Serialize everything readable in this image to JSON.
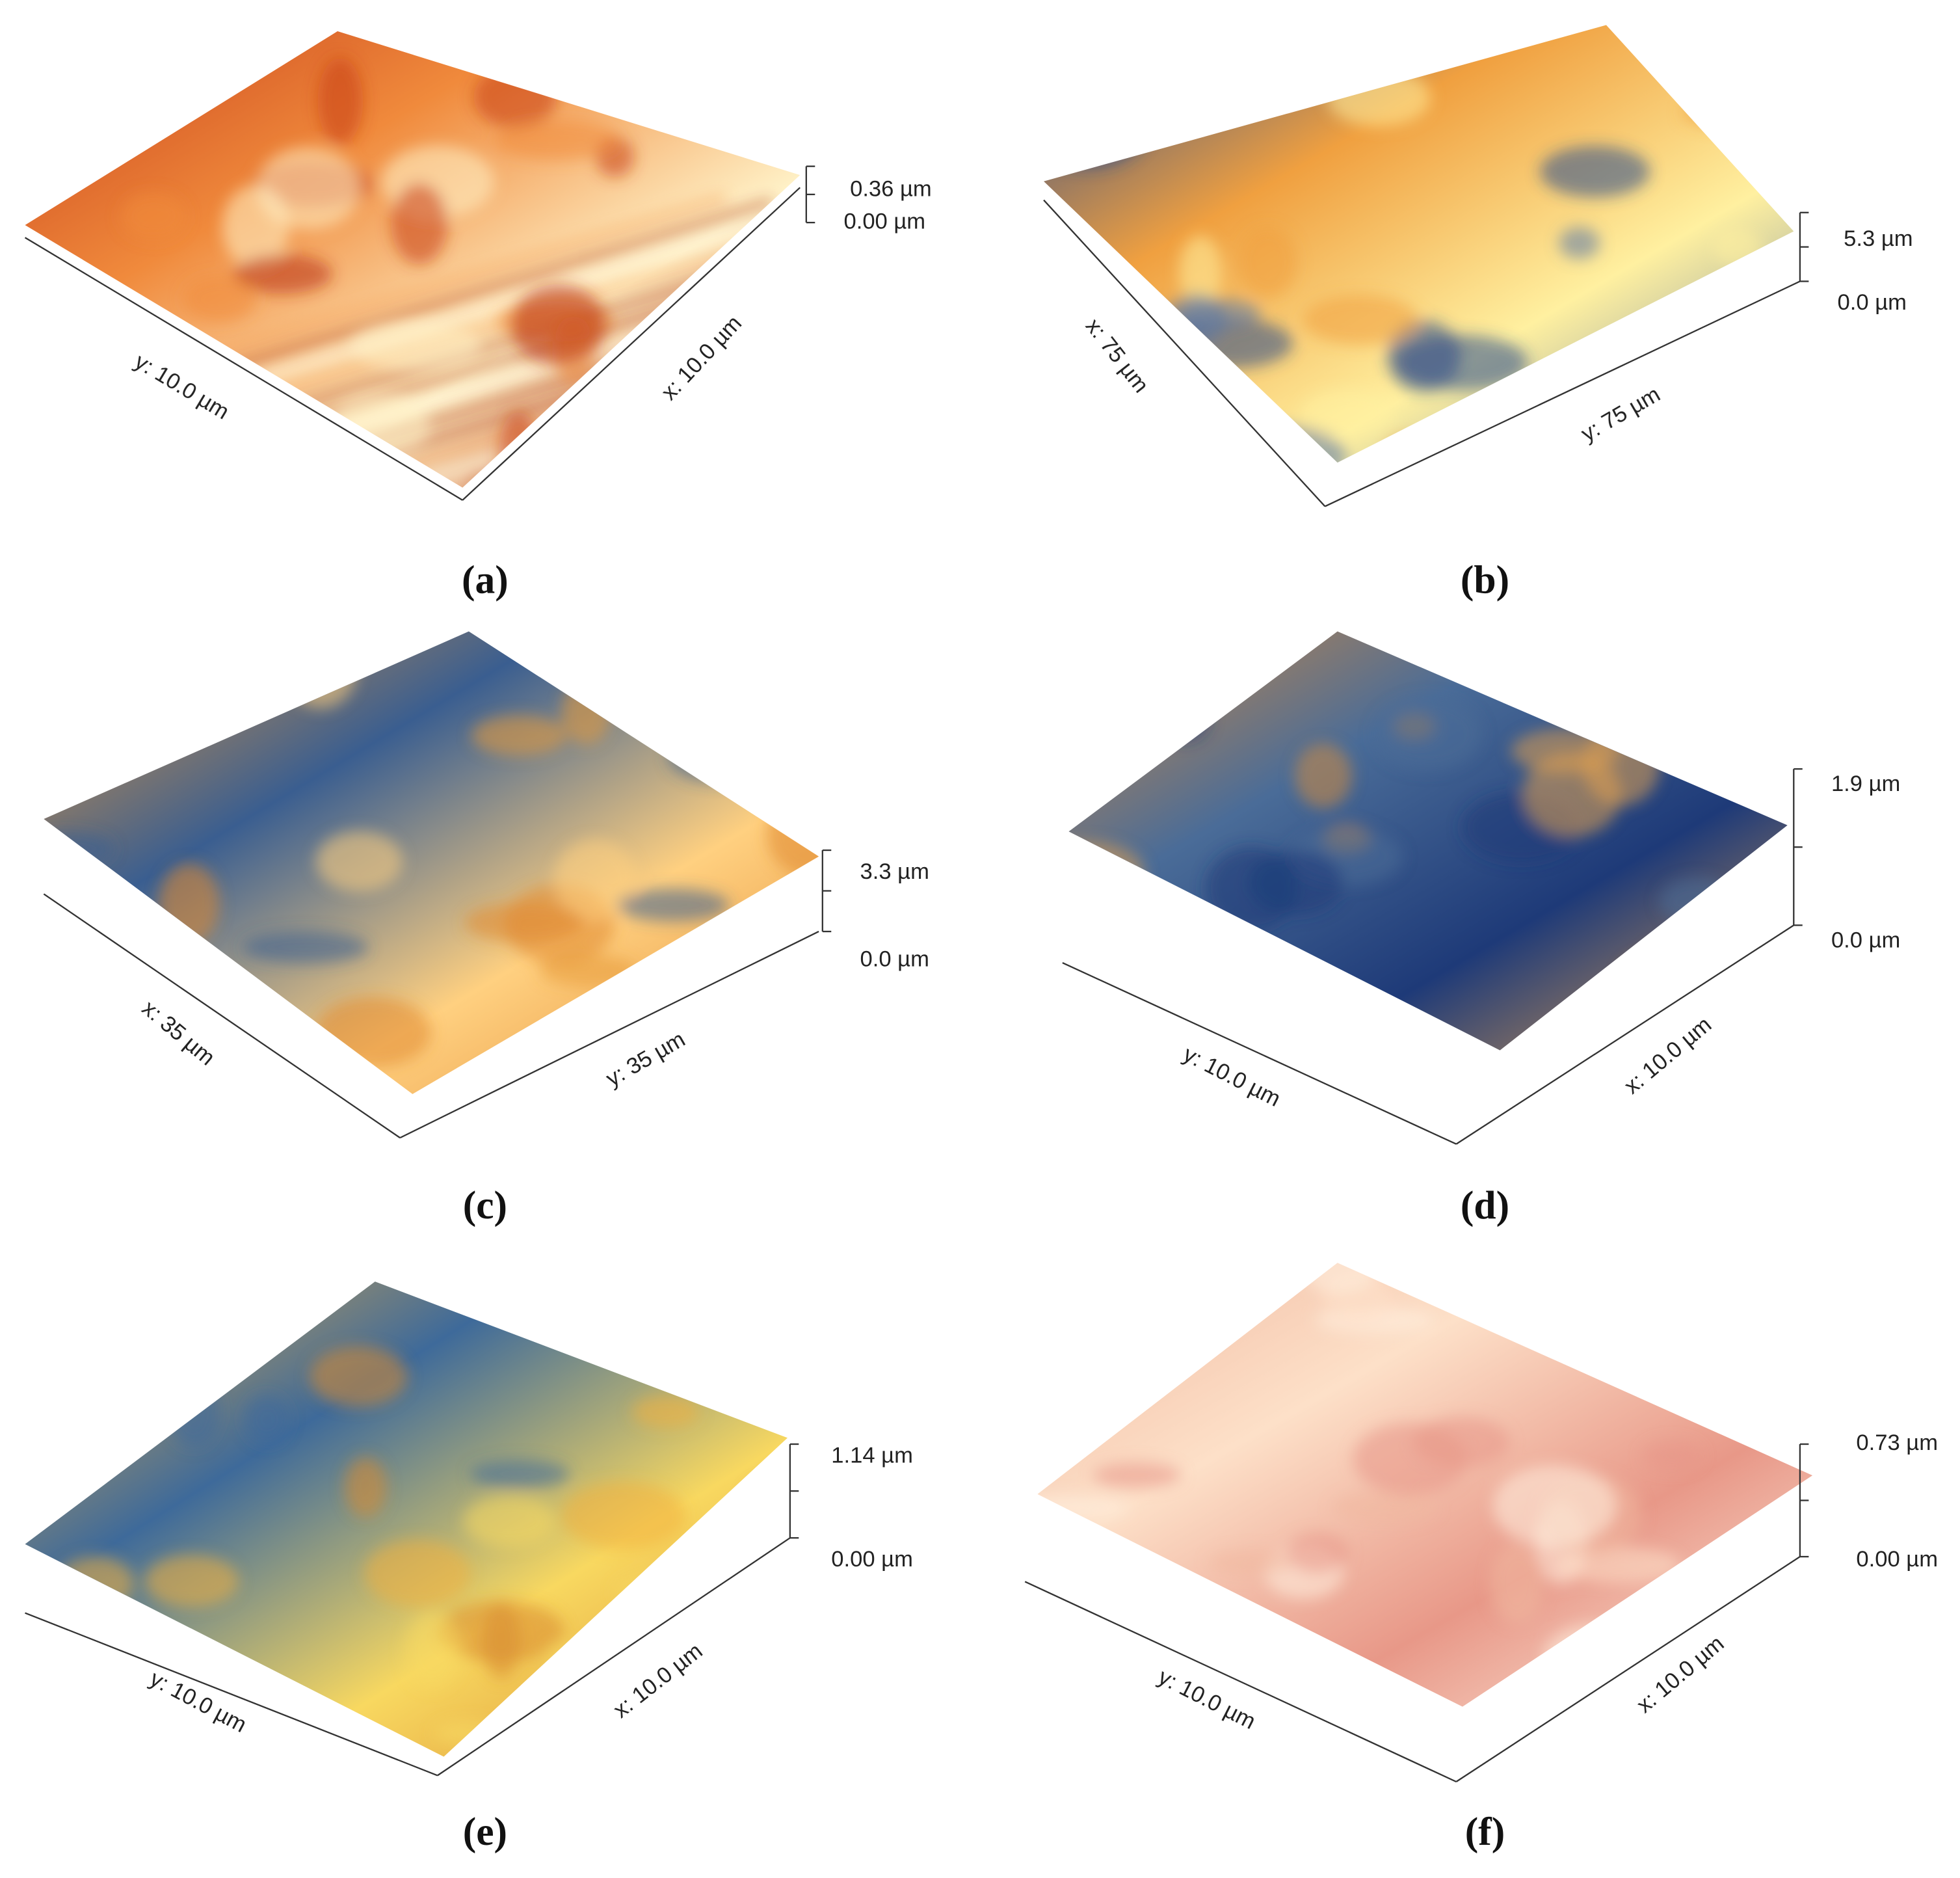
{
  "panels": [
    {
      "caption": "(a)",
      "z_max": "0.36 µm",
      "z_min": "0.00 µm",
      "axis_left": "y: 10.0 µm",
      "axis_right": "x: 10.0 µm"
    },
    {
      "caption": "(b)",
      "z_max": "5.3 µm",
      "z_min": "0.0 µm",
      "axis_left": "x: 75 µm",
      "axis_right": "y: 75 µm"
    },
    {
      "caption": "(c)",
      "z_max": "3.3 µm",
      "z_min": "0.0 µm",
      "axis_left": "x: 35 µm",
      "axis_right": "y: 35 µm"
    },
    {
      "caption": "(d)",
      "z_max": "1.9 µm",
      "z_min": "0.0 µm",
      "axis_left": "y: 10.0 µm",
      "axis_right": "x: 10.0 µm"
    },
    {
      "caption": "(e)",
      "z_max": "1.14 µm",
      "z_min": "0.00 µm",
      "axis_left": "y: 10.0 µm",
      "axis_right": "x: 10.0 µm"
    },
    {
      "caption": "(f)",
      "z_max": "0.73 µm",
      "z_min": "0.00 µm",
      "axis_left": "y: 10.0 µm",
      "axis_right": "x: 10.0 µm"
    }
  ]
}
